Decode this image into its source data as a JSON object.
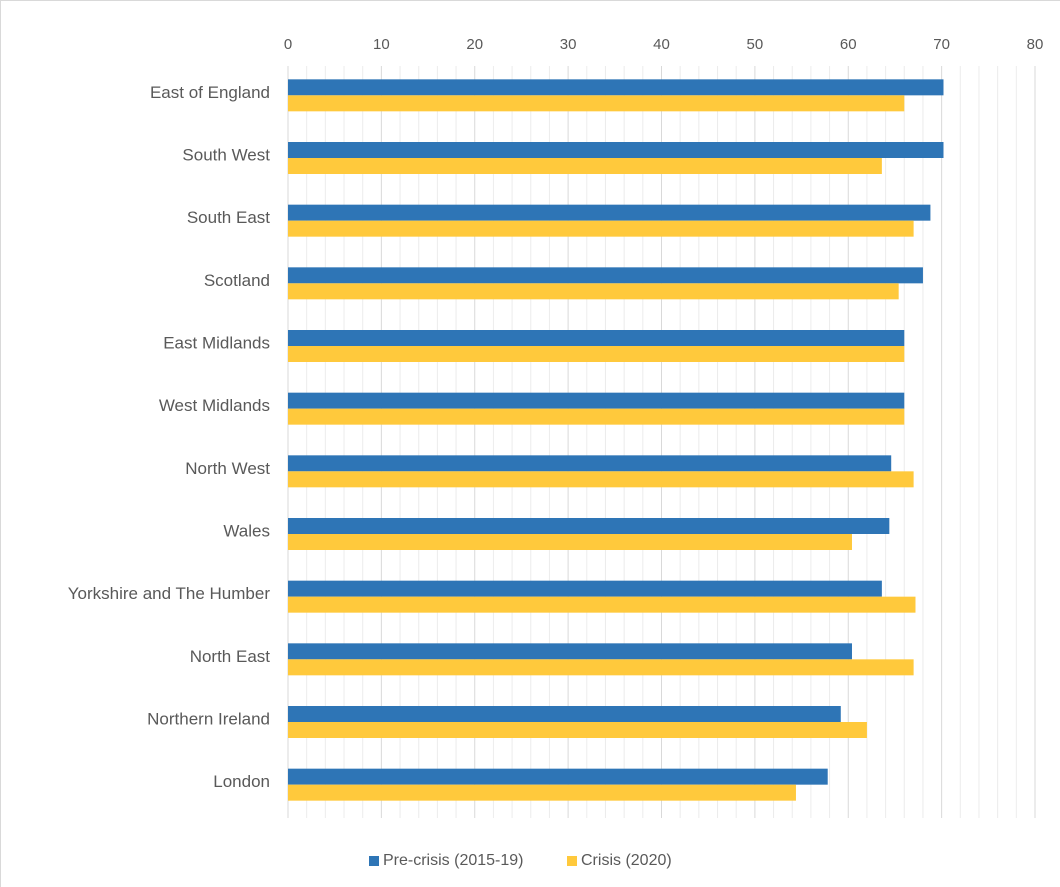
{
  "chart_data": {
    "type": "bar",
    "orientation": "horizontal",
    "categories": [
      "East of England",
      "South West",
      "South East",
      "Scotland",
      "East Midlands",
      "West Midlands",
      "North West",
      "Wales",
      "Yorkshire and The Humber",
      "North East",
      "Northern Ireland",
      "London"
    ],
    "series": [
      {
        "name": "Pre-crisis (2015-19)",
        "color": "#2e75b6",
        "values": [
          70.2,
          70.2,
          68.8,
          68.0,
          66.0,
          66.0,
          64.6,
          64.4,
          63.6,
          60.4,
          59.2,
          57.8
        ]
      },
      {
        "name": "Crisis (2020)",
        "color": "#ffc93c",
        "values": [
          66.0,
          63.6,
          67.0,
          65.4,
          66.0,
          66.0,
          67.0,
          60.4,
          67.2,
          67.0,
          62.0,
          54.4
        ]
      }
    ],
    "xticks": [
      0,
      10,
      20,
      30,
      40,
      50,
      60,
      70,
      80
    ],
    "xlim": [
      0,
      80
    ],
    "xaxis_position": "top",
    "grid": true,
    "legend_position": "bottom"
  }
}
